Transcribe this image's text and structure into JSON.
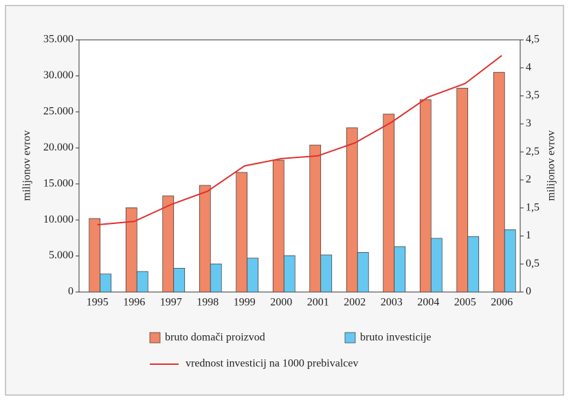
{
  "chart_data": {
    "type": "bar",
    "categories": [
      "1995",
      "1996",
      "1997",
      "1998",
      "1999",
      "2000",
      "2001",
      "2002",
      "2003",
      "2004",
      "2005",
      "2006"
    ],
    "series": [
      {
        "name": "bruto domači proizvod",
        "color": "#f08766",
        "type": "bar",
        "values": [
          10200,
          11700,
          13350,
          14800,
          16600,
          18300,
          20400,
          22800,
          24700,
          26700,
          28300,
          30500
        ]
      },
      {
        "name": "bruto investicije",
        "color": "#66c8f0",
        "type": "bar",
        "values": [
          2500,
          2850,
          3300,
          3900,
          4700,
          5050,
          5150,
          5500,
          6300,
          7450,
          7700,
          8650
        ]
      },
      {
        "name": "vrednost investicij na 1000 prebivalcev",
        "color": "#e03030",
        "type": "line",
        "axis": "y2",
        "values": [
          1.2,
          1.26,
          1.56,
          1.8,
          2.25,
          2.38,
          2.43,
          2.66,
          3.03,
          3.48,
          3.72,
          4.22
        ]
      }
    ],
    "ylabel": "milijonov evrov",
    "y2label": "milijonov evrov",
    "ylim": [
      0,
      35000
    ],
    "yticks": [
      0,
      {
        "value": 5000,
        "label": "5.000"
      },
      {
        "value": 10000,
        "label": "10.000"
      },
      {
        "value": 15000,
        "label": "15.000"
      },
      {
        "value": 20000,
        "label": "20.000"
      },
      {
        "value": 25000,
        "label": "25.000"
      },
      {
        "value": 30000,
        "label": "30.000"
      },
      {
        "value": 35000,
        "label": "35.000"
      }
    ],
    "y2lim": [
      0,
      4.5
    ],
    "y2ticks": [
      0,
      {
        "value": 0.5,
        "label": "0,5"
      },
      1,
      {
        "value": 1.5,
        "label": "1,5"
      },
      2,
      {
        "value": 2.5,
        "label": "2,5"
      },
      3,
      {
        "value": 3.5,
        "label": "3,5"
      },
      4,
      {
        "value": 4.5,
        "label": "4,5"
      }
    ],
    "grid": false
  }
}
